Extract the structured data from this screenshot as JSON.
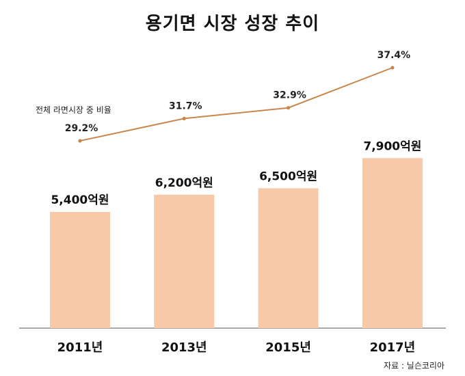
{
  "chart_data": {
    "type": "bar",
    "title": "용기면 시장 성장 추이",
    "categories": [
      "2011년",
      "2013년",
      "2015년",
      "2017년"
    ],
    "series": [
      {
        "type": "bar",
        "values": [
          5400,
          6200,
          6500,
          7900
        ],
        "labels": [
          "5,400억원",
          "6,200억원",
          "6,500억원",
          "7,900억원"
        ],
        "color": "#F7C9A8"
      },
      {
        "name": "전체 라면시장 중 비율",
        "type": "line",
        "values": [
          29.2,
          31.7,
          32.9,
          37.4
        ],
        "labels": [
          "29.2%",
          "31.7%",
          "32.9%",
          "37.4%"
        ],
        "color": "#C8874A"
      }
    ],
    "axis_color": "#8A8A8A",
    "grid": false,
    "source": "자료 : 닐슨코리아"
  }
}
